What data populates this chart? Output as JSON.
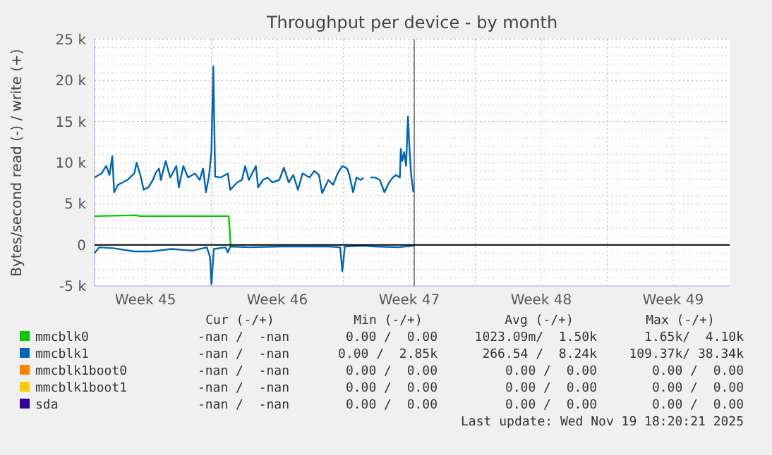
{
  "chart_data": {
    "type": "line",
    "title": "Throughput per device - by month",
    "ylabel": "Bytes/second read (-) / write (+)",
    "xlim": [
      "2025-11-02T19:12",
      "2025-12-06T12:00"
    ],
    "ylim": [
      -5000,
      25000
    ],
    "xticks": [
      {
        "value": "2025-11-05T12:00",
        "label": "Week 45"
      },
      {
        "value": "2025-11-12T12:00",
        "label": "Week 46"
      },
      {
        "value": "2025-11-19T12:00",
        "label": "Week 47"
      },
      {
        "value": "2025-11-26T12:00",
        "label": "Week 48"
      },
      {
        "value": "2025-12-03T12:00",
        "label": "Week 49"
      },
      {
        "value": "2025-11-09",
        "label": null
      },
      {
        "value": "2025-11-16",
        "label": null
      },
      {
        "value": "2025-11-23",
        "label": null
      },
      {
        "value": "2025-11-30",
        "label": null
      }
    ],
    "yticks": [
      {
        "value": -5000,
        "label": "-5 k"
      },
      {
        "value": -4000,
        "label": null
      },
      {
        "value": -3000,
        "label": null
      },
      {
        "value": -2000,
        "label": null
      },
      {
        "value": -1000,
        "label": null
      },
      {
        "value": 0,
        "label": "0"
      },
      {
        "value": 1000,
        "label": null
      },
      {
        "value": 2000,
        "label": null
      },
      {
        "value": 3000,
        "label": null
      },
      {
        "value": 4000,
        "label": null
      },
      {
        "value": 5000,
        "label": "5 k"
      },
      {
        "value": 6000,
        "label": null
      },
      {
        "value": 7000,
        "label": null
      },
      {
        "value": 8000,
        "label": null
      },
      {
        "value": 9000,
        "label": null
      },
      {
        "value": 10000,
        "label": "10 k"
      },
      {
        "value": 11000,
        "label": null
      },
      {
        "value": 12000,
        "label": null
      },
      {
        "value": 13000,
        "label": null
      },
      {
        "value": 14000,
        "label": null
      },
      {
        "value": 15000,
        "label": "15 k"
      },
      {
        "value": 16000,
        "label": null
      },
      {
        "value": 17000,
        "label": null
      },
      {
        "value": 18000,
        "label": null
      },
      {
        "value": 19000,
        "label": null
      },
      {
        "value": 20000,
        "label": "20 k"
      },
      {
        "value": 21000,
        "label": null
      },
      {
        "value": 22000,
        "label": null
      },
      {
        "value": 23000,
        "label": null
      },
      {
        "value": 24000,
        "label": null
      },
      {
        "value": 25000,
        "label": "25 k"
      }
    ],
    "grid": true,
    "legend": "bottom",
    "line_style": "solid",
    "ref_lines": [
      {
        "axis": "x",
        "value": "2025-11-19T18:20",
        "label": null,
        "color": "#888888"
      }
    ],
    "series": [
      {
        "name": "mmcblk0",
        "color": "#00cc00",
        "x": [
          "2025-11-02T19:12",
          "2025-11-05T00:00",
          "2025-11-05T04:48",
          "2025-11-09T22:05",
          "2025-11-10T00:29"
        ],
        "values": [
          3500,
          3600,
          3500,
          3500,
          0
        ]
      },
      {
        "name": "mmcblk1",
        "color": "#0066b3",
        "x": [
          "2025-11-02T19:12",
          "2025-11-03T04:05",
          "2025-11-03T10:05",
          "2025-11-03T14:10",
          "2025-11-03T17:46",
          "2025-11-03T20:10",
          "2025-11-04T00:58",
          "2025-11-04T12:58",
          "2025-11-04T21:50",
          "2025-11-05T00:43",
          "2025-11-05T05:31",
          "2025-11-05T09:50",
          "2025-11-05T15:36",
          "2025-11-05T21:36",
          "2025-11-06T00:43",
          "2025-11-06T05:17",
          "2025-11-06T07:41",
          "2025-11-06T13:41",
          "2025-11-06T19:41",
          "2025-11-07T03:22",
          "2025-11-07T06:29",
          "2025-11-07T12:14",
          "2025-11-07T18:14",
          "2025-11-08T03:07",
          "2025-11-08T09:07",
          "2025-11-08T13:26",
          "2025-11-08T17:02",
          "2025-11-08T21:07",
          "2025-11-09T00:00",
          "2025-11-09T02:24",
          "2025-11-09T04:48",
          "2025-11-09T12:00",
          "2025-11-09T20:53",
          "2025-11-10T00:00",
          "2025-11-10T08:53",
          "2025-11-10T14:53",
          "2025-11-10T18:58",
          "2025-11-10T23:46",
          "2025-11-11T08:38",
          "2025-11-11T11:31",
          "2025-11-11T17:31",
          "2025-11-11T23:31",
          "2025-11-12T05:31",
          "2025-11-12T14:24",
          "2025-11-12T20:24",
          "2025-11-13T02:24",
          "2025-11-13T08:24",
          "2025-11-13T14:10",
          "2025-11-13T20:10",
          "2025-11-14T05:02",
          "2025-11-14T11:02",
          "2025-11-14T17:02",
          "2025-11-14T21:07",
          "2025-11-15T05:02",
          "2025-11-15T11:02",
          "2025-11-15T16:48",
          "2025-11-15T22:48",
          "2025-11-16T04:48",
          "2025-11-16T07:41",
          "2025-11-16T12:29",
          "2025-11-16T16:48",
          "2025-11-16T22:34",
          "2025-11-17T01:41"
        ],
        "values": [
          8200,
          8700,
          9600,
          8500,
          10800,
          6400,
          7300,
          7900,
          8700,
          10000,
          8500,
          6700,
          7000,
          7900,
          8700,
          9300,
          7900,
          10200,
          8200,
          9600,
          7000,
          9600,
          8200,
          8700,
          7900,
          9300,
          6400,
          8500,
          11300,
          21700,
          8300,
          8200,
          8700,
          6700,
          7600,
          7900,
          9600,
          7900,
          9600,
          7000,
          7900,
          8200,
          7600,
          7900,
          9400,
          7600,
          8500,
          6700,
          8700,
          8200,
          9000,
          8500,
          6300,
          7900,
          7300,
          8700,
          9600,
          9300,
          8500,
          6400,
          8200,
          7900,
          8200
        ]
      },
      {
        "color": "#0066b3",
        "x": [
          "2025-11-17T10:34",
          "2025-11-17T16:34",
          "2025-11-17T22:34",
          "2025-11-18T04:19",
          "2025-11-18T10:19",
          "2025-11-18T15:07",
          "2025-11-18T19:12",
          "2025-11-19T00:00",
          "2025-11-19T01:12",
          "2025-11-19T03:07",
          "2025-11-19T05:31",
          "2025-11-19T07:55",
          "2025-11-19T10:19",
          "2025-11-19T12:00",
          "2025-11-19T14:24",
          "2025-11-19T17:17"
        ],
        "values": [
          8200,
          8200,
          7900,
          6400,
          7600,
          8200,
          8500,
          8200,
          11700,
          10200,
          11300,
          9600,
          15600,
          12200,
          8500,
          6400
        ]
      },
      {
        "color": "#0066b3",
        "x": [
          "2025-11-02T19:12",
          "2025-11-03T01:12",
          "2025-11-03T18:58",
          "2025-11-04T21:50",
          "2025-11-05T18:43",
          "2025-11-06T21:22",
          "2025-11-08T00:14",
          "2025-11-08T18:14",
          "2025-11-08T22:19",
          "2025-11-09T00:00",
          "2025-11-09T03:07",
          "2025-11-09T18:00",
          "2025-11-09T20:53",
          "2025-11-10T00:00",
          "2025-11-10T23:46",
          "2025-11-12T17:31",
          "2025-11-13T23:17",
          "2025-11-15T05:02",
          "2025-11-15T19:55",
          "2025-11-15T22:48",
          "2025-11-16T01:55",
          "2025-11-17T01:41",
          "2025-11-17T16:34",
          "2025-11-18T22:19",
          "2025-11-19T17:17"
        ],
        "values": [
          -1000,
          -300,
          -400,
          -800,
          -800,
          -500,
          -700,
          -300,
          -1500,
          -4800,
          -500,
          -300,
          -900,
          -200,
          -300,
          -200,
          -200,
          -200,
          -300,
          -3200,
          -200,
          -100,
          -200,
          -300,
          -100
        ]
      },
      {
        "name": "mmcblk1boot0",
        "color": "#ff8000"
      },
      {
        "name": "mmcblk1boot1",
        "color": "#ffcc00"
      },
      {
        "name": "sda",
        "color": "#330099"
      }
    ],
    "annotations": [
      "Cur (-/+)",
      "Min (-/+)",
      "Avg (-/+)",
      "Max (-/+)",
      "-nan /  -nan",
      "0.00 /  0.00",
      "1023.09m/  1.50k",
      "1.65k/  4.10k",
      "-nan /  -nan",
      "0.00 /  2.85k",
      "266.54 /  8.24k",
      "109.37k/ 38.34k",
      "-nan /  -nan",
      "0.00 /  0.00",
      "0.00 /  0.00",
      "0.00 /  0.00",
      "-nan /  -nan",
      "0.00 /  0.00",
      "0.00 /  0.00",
      "0.00 /  0.00",
      "-nan /  -nan",
      "0.00 /  0.00",
      "0.00 /  0.00",
      "0.00 /  0.00",
      "Last update: Wed Nov 19 18:20:21 2025"
    ]
  }
}
